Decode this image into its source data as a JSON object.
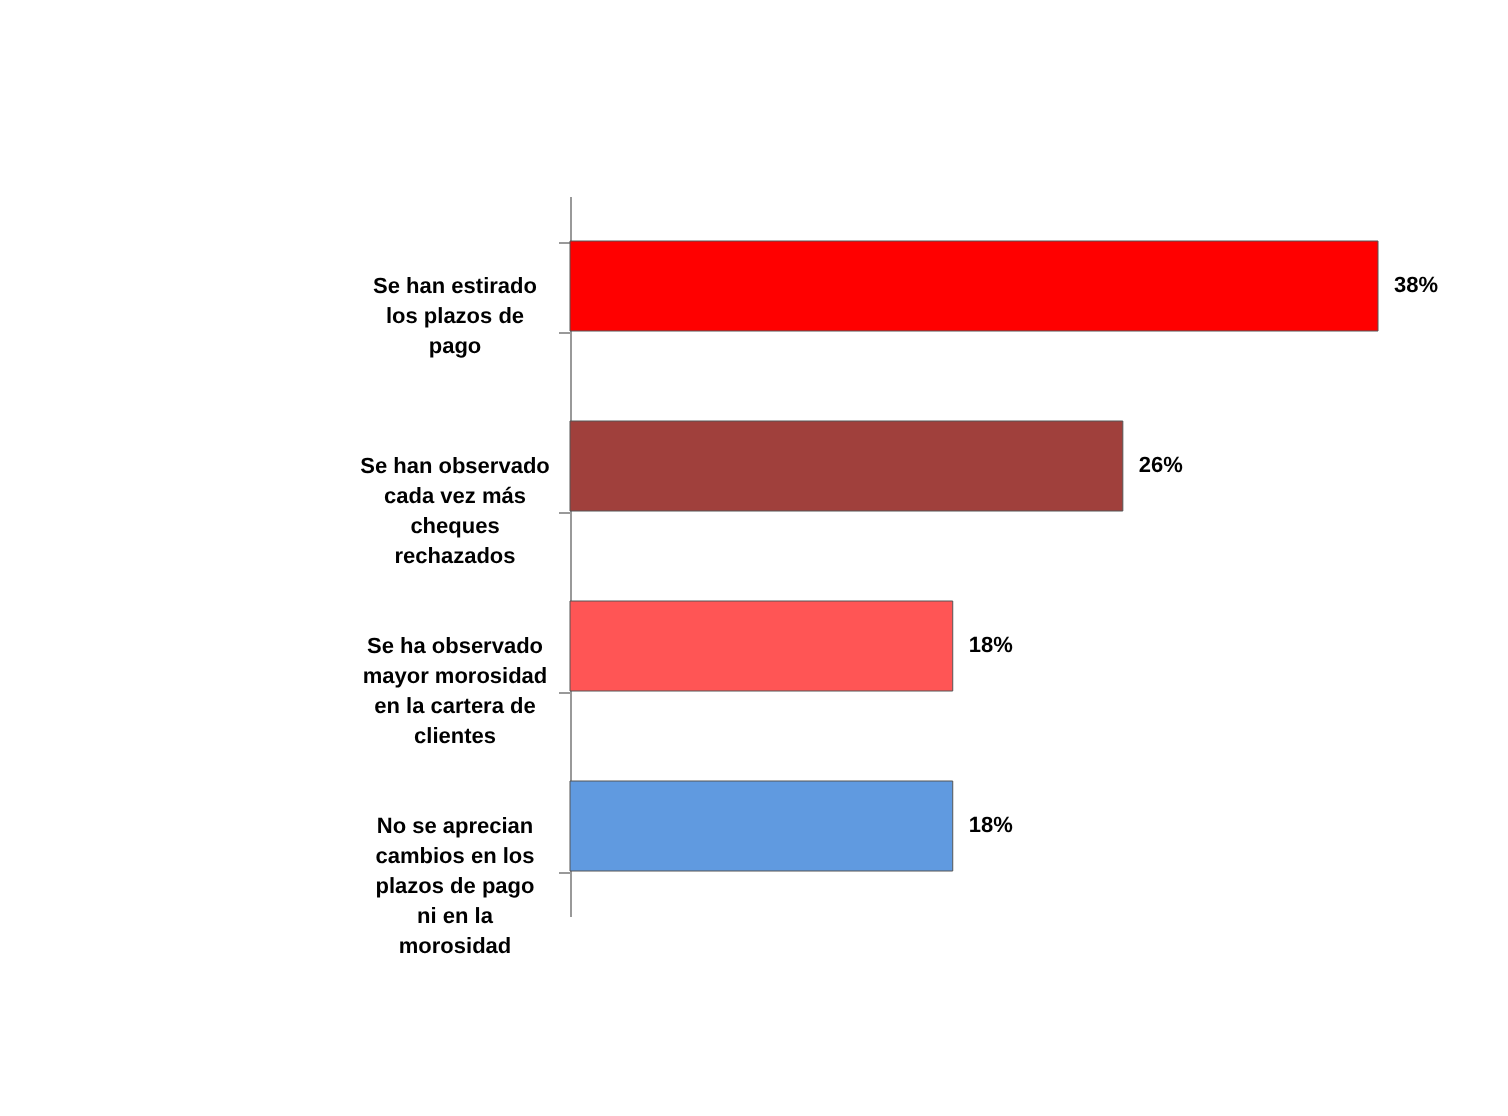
{
  "chart_data": {
    "type": "bar",
    "orientation": "horizontal",
    "categories": [
      "Se han estirado los plazos de pago",
      "Se han observado cada vez más cheques rechazados",
      "Se ha observado mayor morosidad en la cartera de clientes",
      "No se aprecian cambios en los plazos de pago ni en la morosidad"
    ],
    "values": [
      38,
      26,
      18,
      18
    ],
    "colors": [
      "#ff0000",
      "#a0403c",
      "#ff5555",
      "#609ae0"
    ],
    "value_labels": [
      "38%",
      "26%",
      "18%",
      "18%"
    ]
  }
}
